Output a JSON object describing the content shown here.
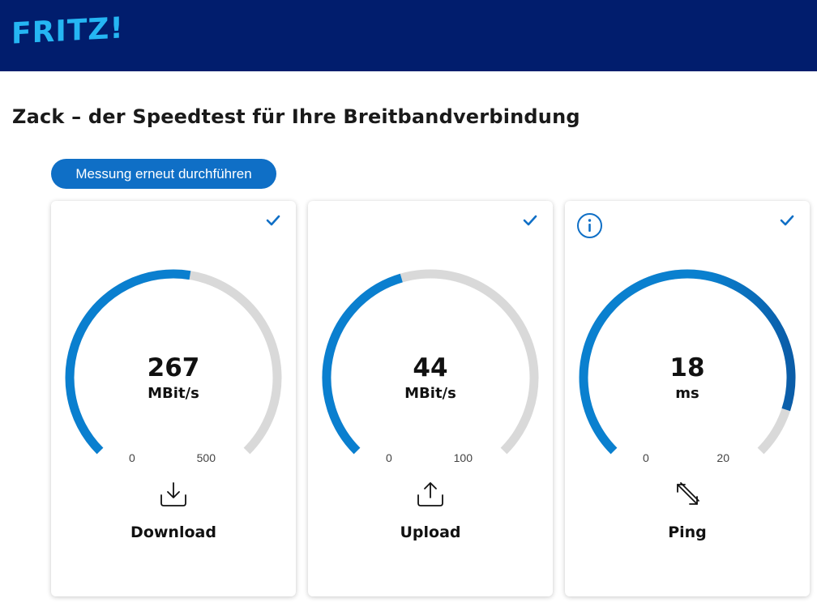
{
  "header": {
    "logo_text": "FRITZ!",
    "background": "#011d6d",
    "logo_color": "#25b6f3"
  },
  "page_title": "Zack – der Speedtest für Ihre Breitbandverbindung",
  "rerun_button_label": "Messung erneut durchführen",
  "colors": {
    "accent": "#0f6fc6",
    "gauge_fill": "#0a7fcf",
    "gauge_track": "#d9d9d9"
  },
  "cards": [
    {
      "name": "download",
      "value": "267",
      "unit": "MBit/s",
      "scale_min": "0",
      "scale_max": "500",
      "label": "Download",
      "icon": "download-icon",
      "completed": true,
      "fill_fraction": 0.534
    },
    {
      "name": "upload",
      "value": "44",
      "unit": "MBit/s",
      "scale_min": "0",
      "scale_max": "100",
      "label": "Upload",
      "icon": "upload-icon",
      "completed": true,
      "fill_fraction": 0.44
    },
    {
      "name": "ping",
      "value": "18",
      "unit": "ms",
      "scale_min": "0",
      "scale_max": "20",
      "label": "Ping",
      "icon": "ping-arrows-icon",
      "completed": true,
      "fill_fraction": 0.9,
      "has_info": true
    }
  ]
}
